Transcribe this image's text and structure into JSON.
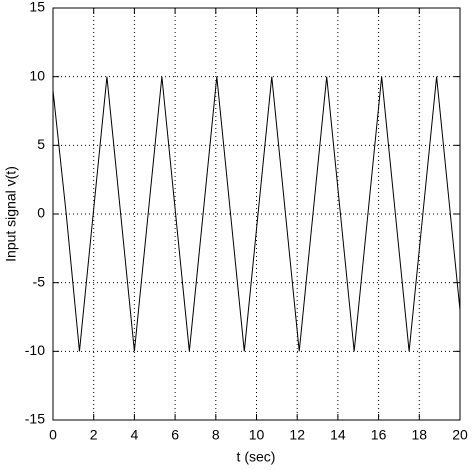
{
  "chart_data": {
    "type": "line",
    "xlabel": "t (sec)",
    "ylabel": "Input signal v(t)",
    "x": [
      0,
      0.65,
      1.3,
      1.975,
      2.65,
      3.325,
      4.0,
      4.675,
      5.35,
      6.025,
      6.7,
      7.375,
      8.05,
      8.725,
      9.4,
      10.075,
      10.75,
      11.425,
      12.1,
      12.775,
      13.45,
      14.125,
      14.8,
      15.475,
      16.15,
      16.825,
      17.5,
      18.175,
      18.85,
      19.525,
      20
    ],
    "values": [
      9,
      0,
      -10,
      0,
      10,
      0,
      -10,
      0,
      10,
      0,
      -10,
      0,
      10,
      0,
      -10,
      0,
      10,
      0,
      -10,
      0,
      10,
      0,
      -10,
      0,
      10,
      0,
      -10,
      0,
      10,
      0,
      -7
    ],
    "color": "#000000",
    "xlim": [
      0,
      20
    ],
    "xticks": [
      0,
      2,
      4,
      6,
      8,
      10,
      12,
      14,
      16,
      18,
      20
    ],
    "ylim": [
      -15,
      15
    ],
    "yticks": [
      -15,
      -10,
      -5,
      0,
      5,
      10,
      15
    ],
    "grid": true
  }
}
